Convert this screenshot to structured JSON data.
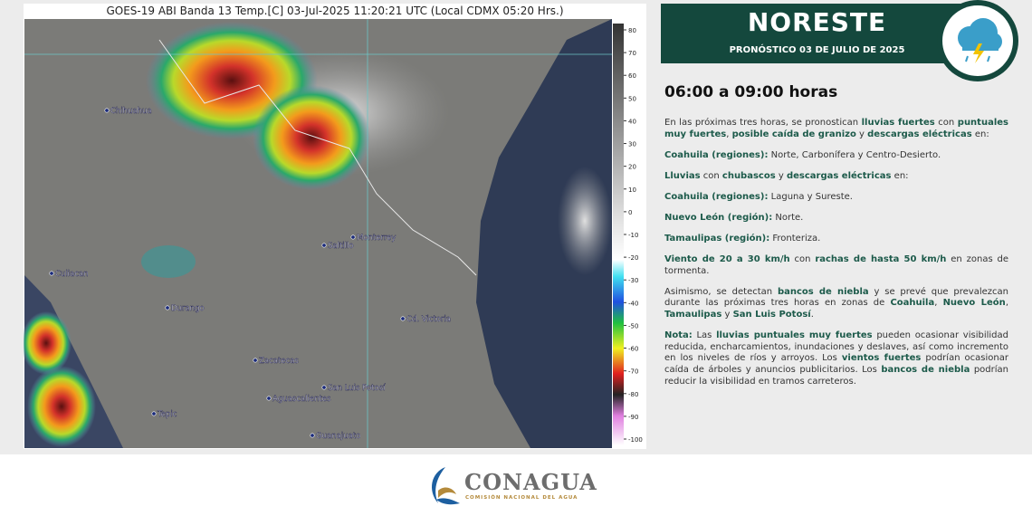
{
  "satellite": {
    "title": "GOES-19 ABI Banda 13 Temp.[C] 03-Jul-2025 11:20:21 UTC (Local CDMX  05:20 Hrs.)",
    "cities": [
      "Chihuahua",
      "Saltillo",
      "Monterrey",
      "Culiacan",
      "Durango",
      "Cd. Victoria",
      "Zacatecas",
      "San Luis Potosí",
      "Aguascalientes",
      "Tepic",
      "Guanajuato"
    ],
    "scale_ticks": [
      80,
      70,
      60,
      50,
      40,
      30,
      20,
      10,
      0,
      -10,
      -20,
      -30,
      -40,
      -50,
      -60,
      -70,
      -80,
      -90,
      -100
    ]
  },
  "header": {
    "region": "NORESTE",
    "subtitle": "PRONÓSTICO 03 DE JULIO DE 2025"
  },
  "forecast": {
    "period": "06:00 a 09:00 horas",
    "paragraphs": [
      [
        "En las próximas tres horas, se pronostican ",
        {
          "text": "lluvias fuertes",
          "bold": true
        },
        " con ",
        {
          "text": "puntuales muy fuertes",
          "bold": true
        },
        ", ",
        {
          "text": "posible caída de granizo",
          "bold": true
        },
        " y ",
        {
          "text": "descargas eléctricas",
          "bold": true
        },
        " en:"
      ],
      [
        {
          "text": "Coahuila",
          "bold": true
        },
        {
          "text": " (regiones):",
          "bold": true
        },
        " Norte, Carbonífera y Centro-Desierto."
      ],
      [
        {
          "text": "Lluvias",
          "bold": true
        },
        " con ",
        {
          "text": "chubascos",
          "bold": true
        },
        " y ",
        {
          "text": "descargas eléctricas",
          "bold": true
        },
        " en:"
      ],
      [
        {
          "text": "Coahuila",
          "bold": true
        },
        {
          "text": " (regiones):",
          "bold": true
        },
        " Laguna y Sureste."
      ],
      [
        {
          "text": "Nuevo León",
          "bold": true
        },
        {
          "text": " (región):",
          "bold": true
        },
        " Norte."
      ],
      [
        {
          "text": "Tamaulipas",
          "bold": true
        },
        {
          "text": " (región):",
          "bold": true
        },
        " Fronteriza."
      ],
      [
        {
          "text": "Viento de 20 a 30 km/h",
          "bold": true
        },
        " con ",
        {
          "text": "rachas de hasta 50 km/h",
          "bold": true
        },
        " en zonas de tormenta."
      ],
      [
        "Asimismo, se detectan ",
        {
          "text": "bancos de  niebla",
          "bold": true
        },
        " y se prevé que prevalezcan durante las próximas tres horas en zonas de ",
        {
          "text": "Coahuila",
          "bold": true
        },
        ", ",
        {
          "text": "Nuevo León",
          "bold": true
        },
        ", ",
        {
          "text": "Tamaulipas",
          "bold": true
        },
        " y ",
        {
          "text": "San Luis Potosí",
          "bold": true
        },
        "."
      ],
      [
        {
          "text": "Nota:",
          "bold": true
        },
        " Las ",
        {
          "text": "lluvias puntuales muy fuertes",
          "bold": true
        },
        " pueden ocasionar visibilidad reducida, encharcamientos, inundaciones y deslaves, así como incremento en los niveles de ríos y arroyos. Los ",
        {
          "text": "vientos fuertes",
          "bold": true
        },
        " podrían ocasionar caída de árboles y anuncios publicitarios. Los ",
        {
          "text": "bancos de niebla",
          "bold": true
        },
        " podrían reducir la visibilidad en tramos carreteros."
      ]
    ]
  },
  "footer": {
    "brand": "CONAGUA",
    "tagline": "COMISIÓN NACIONAL DEL AGUA"
  }
}
